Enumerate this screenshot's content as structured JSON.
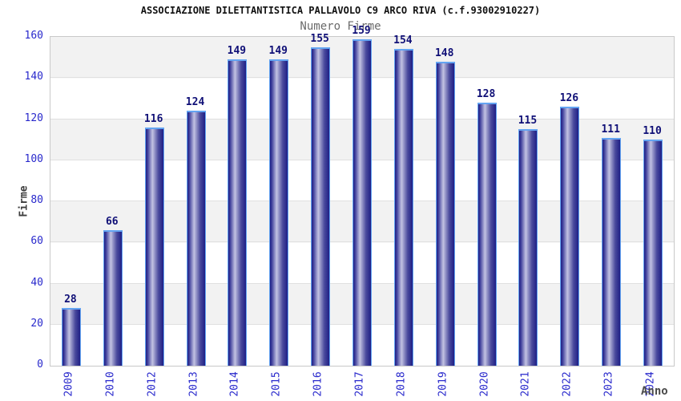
{
  "chart_data": {
    "type": "bar",
    "title": "ASSOCIAZIONE DILETTANTISTICA PALLAVOLO C9 ARCO RIVA (c.f.93002910227)",
    "subtitle": "Numero Firme",
    "xlabel": "Anno",
    "ylabel": "Firme",
    "categories": [
      "2009",
      "2010",
      "2012",
      "2013",
      "2014",
      "2015",
      "2016",
      "2017",
      "2018",
      "2019",
      "2020",
      "2021",
      "2022",
      "2023",
      "2024"
    ],
    "values": [
      28,
      66,
      116,
      124,
      149,
      149,
      155,
      159,
      154,
      148,
      128,
      115,
      126,
      111,
      110
    ],
    "ylim": [
      0,
      160
    ],
    "ytick_step": 20,
    "yticks": [
      0,
      20,
      40,
      60,
      80,
      100,
      120,
      140,
      160
    ],
    "grid": true,
    "legend": false,
    "band_colors": [
      "#ffffff",
      "#f2f2f2"
    ],
    "colors": {
      "tick_label": "#2929cc",
      "value_label": "#101077",
      "bar_dark": "#1f1f85",
      "bar_highlight": "#c2c2e2",
      "bar_border": "#63a4f2",
      "gridline": "#e0e0e0",
      "plot_border": "#c9c9c9",
      "title": "#111111",
      "subtitle": "#6b6b6b",
      "axis_label": "#3d3d3d"
    }
  }
}
